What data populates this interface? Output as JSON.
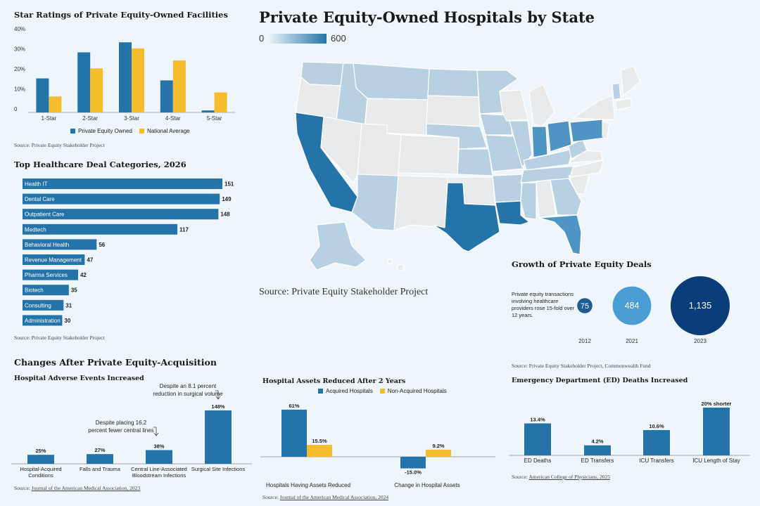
{
  "colors": {
    "blue": "#2474a9",
    "yellow": "#f5bd2e",
    "navy": "#0a3d7a",
    "mid": "#4f95c4",
    "light": "#b7d1e3",
    "grey": "#e9eaeb"
  },
  "star_ratings": {
    "title": "Star Ratings of Private Equity-Owned Facilities",
    "source": "Source:  Private Equity Stakeholder Project",
    "chart_data": {
      "type": "bar",
      "categories": [
        "1-Star",
        "2-Star",
        "3-Star",
        "4-Star",
        "5-Star"
      ],
      "series": [
        {
          "name": "Private Equity Owned",
          "values": [
            17,
            30,
            35,
            16,
            1
          ]
        },
        {
          "name": "National Average",
          "values": [
            8,
            22,
            32,
            26,
            10
          ]
        }
      ],
      "y_ticks": [
        "0",
        "10%",
        "20%",
        "30%",
        "40%"
      ],
      "ylim": [
        0,
        40
      ],
      "legend": "bottom"
    }
  },
  "deal_categories": {
    "title": "Top Healthcare Deal Categories, 2026",
    "source": "Source: Private Equity Stakeholder Project",
    "chart_data": {
      "type": "bar",
      "categories": [
        "Health IT",
        "Dental Care",
        "Outpatient Care",
        "Medtech",
        "Behavioral Health",
        "Revenue Management",
        "Pharma Services",
        "Biotech",
        "Consulting",
        "Administration"
      ],
      "values": [
        151,
        149,
        148,
        117,
        56,
        47,
        42,
        35,
        31,
        30
      ],
      "value_labels": [
        "151",
        "149",
        "148",
        "117",
        "56",
        "47",
        "42",
        "35",
        "31",
        "30"
      ]
    }
  },
  "map": {
    "title": "Private Equity-Owned Hospitals by State",
    "scale_min": "0",
    "scale_max": "600",
    "source": "Source: Private Equity Stakeholder Project"
  },
  "growth": {
    "title": "Growth of Private Equity Deals",
    "description": "Private equity transactions involving healthcare providers rose 15-fold over 12 years.",
    "source": "Source: Private Equity Stakeholder Project, Commonwealth Fund",
    "chart_data": {
      "type": "scatter",
      "years": [
        "2012",
        "2021",
        "2023"
      ],
      "values": [
        75,
        484,
        1135
      ],
      "value_labels": [
        "75",
        "484",
        "1,135"
      ]
    }
  },
  "changes": {
    "title": "Changes After Private Equity-Acquisition"
  },
  "adverse": {
    "title": "Hospital Adverse Events Increased",
    "annotation1": [
      "Despite an 8.1 percent",
      "reduction in surgical volume"
    ],
    "annotation2": [
      "Despite placing 16.2",
      "percent fewer central lines"
    ],
    "source_prefix": "Source: ",
    "source_link": "Journal of the American Medical Association, 2023",
    "chart_data": {
      "type": "bar",
      "categories": [
        [
          "Hospital-Acquired",
          "Conditions"
        ],
        [
          "Falls and Trauma"
        ],
        [
          "Central Line-Associated",
          "Bloodstream Infections"
        ],
        [
          "Surgical Site Infections"
        ]
      ],
      "values": [
        25,
        27,
        38,
        148
      ],
      "value_labels": [
        "25%",
        "27%",
        "38%",
        "148%"
      ]
    }
  },
  "assets": {
    "title": "Hospital Assets Reduced After 2 Years",
    "source_prefix": "Source: ",
    "source_link": "Journal of the American Medical Association,  2024",
    "chart_data": {
      "type": "bar",
      "categories": [
        "Hospitals Having Assets Reduced",
        "Change in Hospital Assets"
      ],
      "series": [
        {
          "name": "Acquired Hospitals",
          "values": [
            61,
            -15.0
          ],
          "labels": [
            "61%",
            "-15.0%"
          ]
        },
        {
          "name": "Non-Acquired Hospitals",
          "values": [
            15.5,
            9.2
          ],
          "labels": [
            "15.5%",
            "9.2%"
          ]
        }
      ],
      "legend": "top"
    }
  },
  "ed": {
    "title": "Emergency Department (ED) Deaths Increased",
    "source_prefix": "Source: ",
    "source_link": "American College of Physicians, 2025",
    "chart_data": {
      "type": "bar",
      "categories": [
        "ED Deaths",
        "ED Transfers",
        "ICU Transfers",
        "ICU Length of Stay"
      ],
      "values": [
        13.4,
        4.2,
        10.6,
        20
      ],
      "value_labels": [
        "13.4%",
        "4.2%",
        "10.6%",
        "20% shorter"
      ]
    }
  }
}
